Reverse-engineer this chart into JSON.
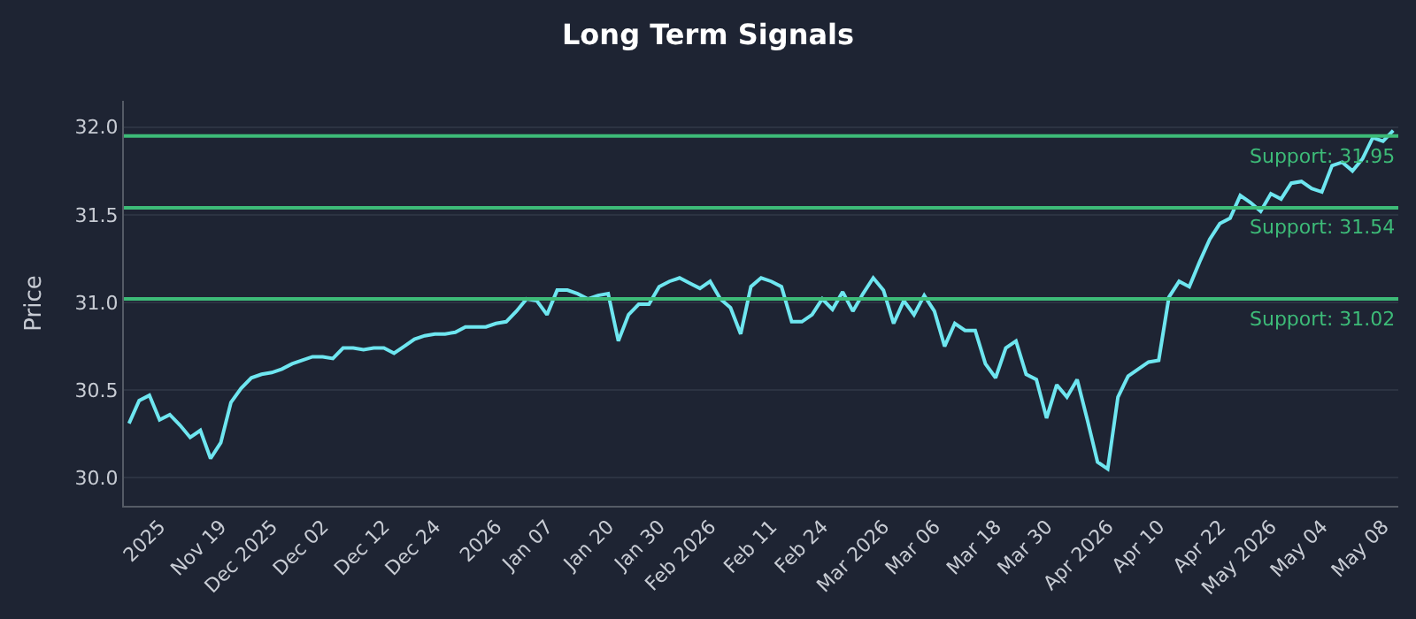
{
  "chart_data": {
    "type": "line",
    "title": "Long Term Signals",
    "ylabel": "Price",
    "categories": [
      null,
      null,
      null,
      "2025",
      null,
      null,
      null,
      null,
      null,
      "Nov 19",
      null,
      null,
      null,
      null,
      "Dec 2025",
      null,
      null,
      null,
      null,
      "Dec 02",
      null,
      null,
      null,
      null,
      null,
      "Dec 12",
      null,
      null,
      null,
      null,
      "Dec 24",
      null,
      null,
      null,
      null,
      null,
      "2026",
      null,
      null,
      null,
      null,
      "Jan 07",
      null,
      null,
      null,
      null,
      null,
      "Jan 20",
      null,
      null,
      null,
      null,
      "Jan 30",
      null,
      null,
      null,
      null,
      "Feb 2026",
      null,
      null,
      null,
      null,
      null,
      "Feb 11",
      null,
      null,
      null,
      null,
      "Feb 24",
      null,
      null,
      null,
      null,
      null,
      "Mar 2026",
      null,
      null,
      null,
      null,
      "Mar 06",
      null,
      null,
      null,
      null,
      null,
      "Mar 18",
      null,
      null,
      null,
      null,
      "Mar 30",
      null,
      null,
      null,
      null,
      null,
      "Apr 2026",
      null,
      null,
      null,
      null,
      "Apr 10",
      null,
      null,
      null,
      null,
      null,
      "Apr 22",
      null,
      null,
      null,
      null,
      "May 2026",
      null,
      null,
      null,
      null,
      "May 04",
      null,
      null,
      null,
      null,
      null,
      "May 08",
      null
    ],
    "series": [
      {
        "color": "#6ee6f0",
        "values": [
          30.31,
          30.44,
          30.47,
          30.33,
          30.36,
          30.3,
          30.23,
          30.27,
          30.11,
          30.2,
          30.43,
          30.51,
          30.57,
          30.59,
          30.6,
          30.62,
          30.65,
          30.67,
          30.69,
          30.69,
          30.68,
          30.74,
          30.74,
          30.73,
          30.74,
          30.74,
          30.71,
          30.75,
          30.79,
          30.81,
          30.82,
          30.82,
          30.83,
          30.86,
          30.86,
          30.86,
          30.88,
          30.89,
          30.95,
          31.02,
          31.01,
          30.93,
          31.07,
          31.07,
          31.05,
          31.02,
          31.04,
          31.05,
          30.78,
          30.93,
          30.99,
          30.99,
          31.09,
          31.12,
          31.14,
          31.11,
          31.08,
          31.12,
          31.02,
          30.97,
          30.82,
          31.09,
          31.14,
          31.12,
          31.09,
          30.89,
          30.89,
          30.93,
          31.02,
          30.96,
          31.06,
          30.95,
          31.05,
          31.14,
          31.07,
          30.88,
          31.01,
          30.93,
          31.04,
          30.95,
          30.75,
          30.88,
          30.84,
          30.84,
          30.65,
          30.57,
          30.74,
          30.78,
          30.59,
          30.56,
          30.34,
          30.53,
          30.46,
          30.56,
          30.33,
          30.09,
          30.05,
          30.46,
          30.58,
          30.62,
          30.66,
          30.67,
          31.03,
          31.12,
          31.09,
          31.23,
          31.36,
          31.45,
          31.48,
          31.61,
          31.57,
          31.52,
          31.62,
          31.59,
          31.68,
          31.69,
          31.65,
          31.63,
          31.78,
          31.8,
          31.75,
          31.82,
          31.94,
          31.92,
          31.98
        ]
      }
    ],
    "ylim": [
      29.84,
      32.15
    ],
    "yticks": [
      {
        "value": 30,
        "label": "30.0"
      },
      {
        "value": 30.5,
        "label": "30.5"
      },
      {
        "value": 31,
        "label": "31.0"
      },
      {
        "value": 31.5,
        "label": "31.5"
      },
      {
        "value": 32,
        "label": "32.0"
      }
    ],
    "ref_lines": [
      {
        "axis": "y",
        "value": 31.95,
        "label": "Support: 31.95",
        "color": "#3dbb78"
      },
      {
        "axis": "y",
        "value": 31.54,
        "label": "Support: 31.54",
        "color": "#3dbb78"
      },
      {
        "axis": "y",
        "value": 31.02,
        "label": "Support: 31.02",
        "color": "#3dbb78"
      }
    ],
    "grid": "y",
    "marker": "none",
    "line_style": "solid"
  }
}
